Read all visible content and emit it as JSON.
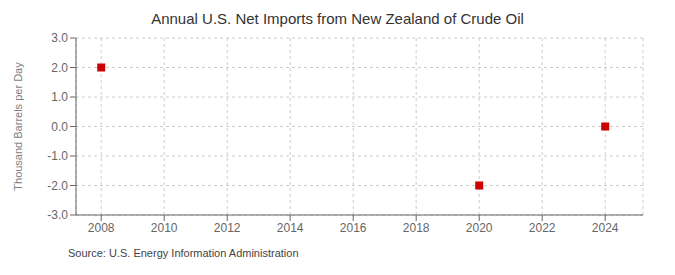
{
  "chart_data": {
    "type": "scatter",
    "title": "Annual U.S. Net Imports from New Zealand of Crude Oil",
    "ylabel": "Thousand Barrels per Day",
    "annotations": [
      "Source: U.S. Energy Information Administration"
    ],
    "x": [
      2008,
      2020,
      2024
    ],
    "values": [
      2.0,
      -2.0,
      0.0
    ],
    "color": "#cc0000",
    "marker": "square",
    "xlim": [
      2007.2,
      2025.2
    ],
    "xticks": [
      2008,
      2010,
      2012,
      2014,
      2016,
      2018,
      2020,
      2022,
      2024
    ],
    "ylim": [
      -3.0,
      3.0
    ],
    "yticks": [
      {
        "value": -3.0,
        "label": "-3.0"
      },
      {
        "value": -2.0,
        "label": "-2.0"
      },
      {
        "value": -1.0,
        "label": "-1.0"
      },
      {
        "value": 0.0,
        "label": "0.0"
      },
      {
        "value": 1.0,
        "label": "1.0"
      },
      {
        "value": 2.0,
        "label": "2.0"
      },
      {
        "value": 3.0,
        "label": "3.0"
      }
    ],
    "grid": true
  }
}
